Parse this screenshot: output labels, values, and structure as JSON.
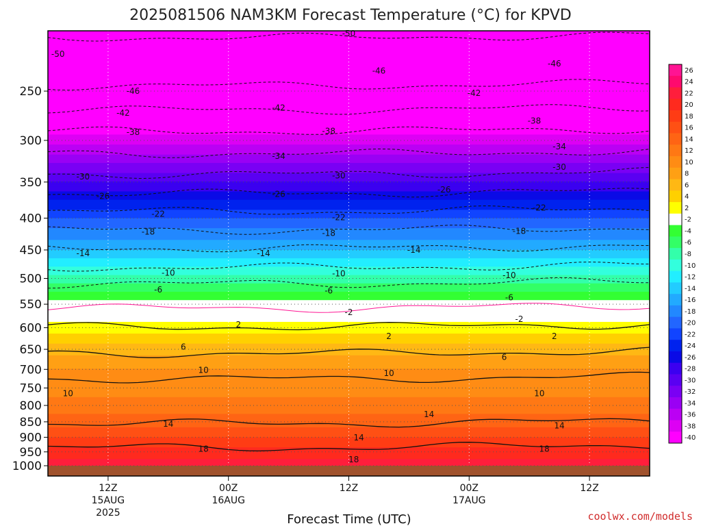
{
  "chart_data": {
    "type": "heatmap",
    "title": "2025081506 NAM3KM Forecast Temperature (°C) for KPVD",
    "xlabel": "Forecast Time (UTC)",
    "ylabel": "",
    "credit": "coolwx.com/models",
    "y_scale": "log-pressure",
    "y_axis": {
      "ticks": [
        250,
        300,
        350,
        400,
        450,
        500,
        550,
        600,
        650,
        700,
        750,
        800,
        850,
        900,
        950,
        1000
      ],
      "range": [
        200,
        1000
      ],
      "unit": "hPa"
    },
    "x_axis": {
      "range": [
        "2025-08-15 06Z",
        "2025-08-17 18Z"
      ],
      "ticks": [
        {
          "hour": 6,
          "label": [
            "12Z",
            "15AUG",
            "2025"
          ]
        },
        {
          "hour": 18,
          "label": [
            "00Z",
            "16AUG"
          ]
        },
        {
          "hour": 30,
          "label": [
            "12Z"
          ]
        },
        {
          "hour": 42,
          "label": [
            "00Z",
            "17AUG"
          ]
        },
        {
          "hour": 54,
          "label": [
            "12Z"
          ]
        }
      ]
    },
    "grid": true,
    "legend": "right",
    "colorbar": {
      "levels": [
        "26",
        "24",
        "22",
        "20",
        "18",
        "16",
        "14",
        "12",
        "10",
        "8",
        "6",
        "4",
        "2",
        "-2",
        "-4",
        "-6",
        "-8",
        "-10",
        "-12",
        "-14",
        "-16",
        "-18",
        "-20",
        "-22",
        "-24",
        "-26",
        "-28",
        "-30",
        "-32",
        "-34",
        "-36",
        "-38",
        "-40"
      ],
      "colors": [
        "#ff1493",
        "#ff0a6e",
        "#ff1e3c",
        "#ff2a1e",
        "#ff3c14",
        "#ff5014",
        "#ff6414",
        "#ff7814",
        "#ff8c14",
        "#ffa014",
        "#ffb814",
        "#ffd000",
        "#ffff00",
        "#ffffff",
        "#33ff33",
        "#33ff66",
        "#33ffaa",
        "#33ffdd",
        "#22eeff",
        "#22ccff",
        "#22aaff",
        "#2288ff",
        "#2266ff",
        "#1144ff",
        "#0022ee",
        "#0a0ae6",
        "#3b00f0",
        "#5a00f2",
        "#7a00f4",
        "#9a00f4",
        "#bb00f4",
        "#dd00f4",
        "#ff00ff"
      ]
    },
    "profile": {
      "pressure": [
        200,
        250,
        300,
        350,
        400,
        450,
        500,
        550,
        600,
        650,
        700,
        750,
        800,
        850,
        900,
        950,
        1000
      ],
      "temperature": [
        -51,
        -45,
        -37,
        -28,
        -20,
        -14,
        -7,
        -1,
        3,
        7,
        10,
        11,
        13,
        15,
        18,
        21,
        23
      ]
    },
    "contours": [
      {
        "value": "-50",
        "pressure": 205
      },
      {
        "value": "-46",
        "pressure": 245
      },
      {
        "value": "-42",
        "pressure": 268
      },
      {
        "value": "-38",
        "pressure": 290
      },
      {
        "value": "-34",
        "pressure": 315
      },
      {
        "value": "-30",
        "pressure": 340
      },
      {
        "value": "-26",
        "pressure": 365
      },
      {
        "value": "-22",
        "pressure": 390
      },
      {
        "value": "-18",
        "pressure": 418
      },
      {
        "value": "-14",
        "pressure": 447
      },
      {
        "value": "-10",
        "pressure": 480
      },
      {
        "value": "-6",
        "pressure": 510
      },
      {
        "value": "-2",
        "pressure": 558
      },
      {
        "value": "2",
        "pressure": 598
      },
      {
        "value": "6",
        "pressure": 660
      },
      {
        "value": "10",
        "pressure": 725
      },
      {
        "value": "14",
        "pressure": 855
      },
      {
        "value": "18",
        "pressure": 935
      }
    ],
    "contour_labels": [
      {
        "text": "-50",
        "hour": 1,
        "pressure": 218
      },
      {
        "text": "-50",
        "hour": 30,
        "pressure": 202
      },
      {
        "text": "-46",
        "hour": 8.5,
        "pressure": 250
      },
      {
        "text": "-46",
        "hour": 33,
        "pressure": 232
      },
      {
        "text": "-46",
        "hour": 50.5,
        "pressure": 226
      },
      {
        "text": "-42",
        "hour": 7.5,
        "pressure": 271
      },
      {
        "text": "-42",
        "hour": 23,
        "pressure": 266
      },
      {
        "text": "-42",
        "hour": 42.5,
        "pressure": 252
      },
      {
        "text": "-38",
        "hour": 8.5,
        "pressure": 291
      },
      {
        "text": "-38",
        "hour": 28,
        "pressure": 290
      },
      {
        "text": "-38",
        "hour": 48.5,
        "pressure": 279
      },
      {
        "text": "-34",
        "hour": 23,
        "pressure": 318
      },
      {
        "text": "-34",
        "hour": 51,
        "pressure": 307
      },
      {
        "text": "-30",
        "hour": 3.5,
        "pressure": 343
      },
      {
        "text": "-30",
        "hour": 29,
        "pressure": 342
      },
      {
        "text": "-30",
        "hour": 51,
        "pressure": 331
      },
      {
        "text": "-26",
        "hour": 5.5,
        "pressure": 369
      },
      {
        "text": "-26",
        "hour": 23,
        "pressure": 366
      },
      {
        "text": "-26",
        "hour": 39.5,
        "pressure": 360
      },
      {
        "text": "-22",
        "hour": 11,
        "pressure": 394
      },
      {
        "text": "-22",
        "hour": 29,
        "pressure": 399
      },
      {
        "text": "-22",
        "hour": 49,
        "pressure": 385
      },
      {
        "text": "-18",
        "hour": 10,
        "pressure": 421
      },
      {
        "text": "-18",
        "hour": 28,
        "pressure": 423
      },
      {
        "text": "-18",
        "hour": 47,
        "pressure": 420
      },
      {
        "text": "-14",
        "hour": 3.5,
        "pressure": 456
      },
      {
        "text": "-14",
        "hour": 21.5,
        "pressure": 456
      },
      {
        "text": "-14",
        "hour": 36.5,
        "pressure": 450
      },
      {
        "text": "-10",
        "hour": 12,
        "pressure": 490
      },
      {
        "text": "-10",
        "hour": 29,
        "pressure": 491
      },
      {
        "text": "-10",
        "hour": 46,
        "pressure": 494
      },
      {
        "text": "-6",
        "hour": 11,
        "pressure": 521
      },
      {
        "text": "-6",
        "hour": 28,
        "pressure": 523
      },
      {
        "text": "-6",
        "hour": 46,
        "pressure": 537
      },
      {
        "text": "-2",
        "hour": 30,
        "pressure": 567
      },
      {
        "text": "-2",
        "hour": 47,
        "pressure": 581
      },
      {
        "text": "2",
        "hour": 19,
        "pressure": 593
      },
      {
        "text": "2",
        "hour": 34,
        "pressure": 619
      },
      {
        "text": "2",
        "hour": 50.5,
        "pressure": 619
      },
      {
        "text": "6",
        "hour": 13.5,
        "pressure": 644
      },
      {
        "text": "6",
        "hour": 45.5,
        "pressure": 669
      },
      {
        "text": "10",
        "hour": 15.5,
        "pressure": 702
      },
      {
        "text": "10",
        "hour": 34,
        "pressure": 710
      },
      {
        "text": "10",
        "hour": 2,
        "pressure": 765
      },
      {
        "text": "10",
        "hour": 49,
        "pressure": 765
      },
      {
        "text": "14",
        "hour": 38,
        "pressure": 827
      },
      {
        "text": "14",
        "hour": 12,
        "pressure": 857
      },
      {
        "text": "14",
        "hour": 31,
        "pressure": 901
      },
      {
        "text": "14",
        "hour": 51,
        "pressure": 862
      },
      {
        "text": "18",
        "hour": 15.5,
        "pressure": 940
      },
      {
        "text": "18",
        "hour": 30.5,
        "pressure": 977
      },
      {
        "text": "18",
        "hour": 49.5,
        "pressure": 940
      }
    ]
  }
}
